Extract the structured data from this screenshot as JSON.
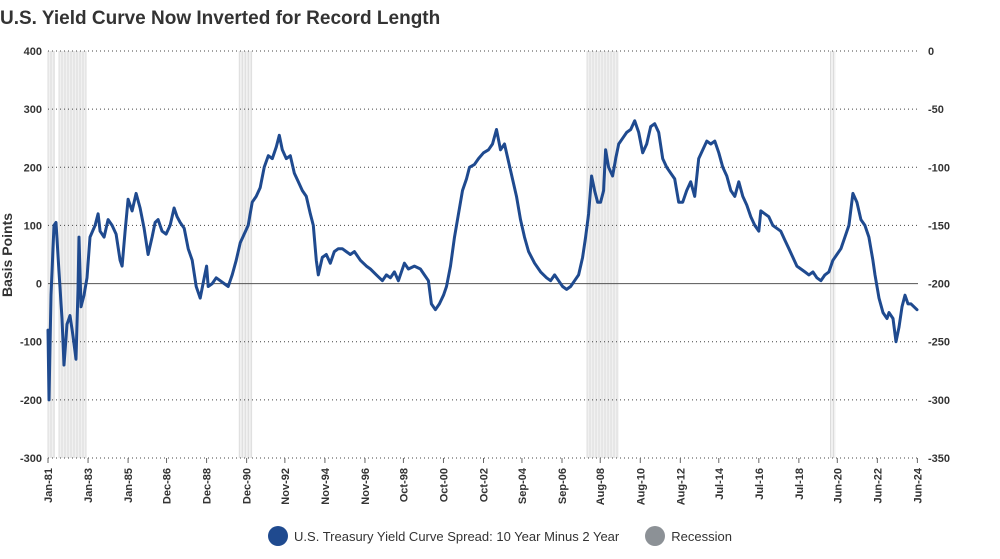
{
  "chart_data": {
    "type": "line",
    "title": "U.S. Yield Curve Now Inverted for Record Length",
    "ylabel": "Basis Points",
    "ylim": [
      -300,
      400
    ],
    "y_ticks": [
      400,
      300,
      200,
      100,
      0,
      -100,
      -200,
      -300
    ],
    "y_ticks_right": [
      "0",
      "-50",
      "-100",
      "-150",
      "-200",
      "-250",
      "-300",
      "-350"
    ],
    "xlim": [
      1981.0,
      2024.45
    ],
    "x_tick_labels": [
      "Jan-81",
      "Jan-83",
      "Jan-85",
      "Dec-86",
      "Dec-88",
      "Dec-90",
      "Nov-92",
      "Nov-94",
      "Nov-96",
      "Oct-98",
      "Oct-00",
      "Oct-02",
      "Sep-04",
      "Sep-06",
      "Aug-08",
      "Aug-10",
      "Aug-12",
      "Jul-14",
      "Jul-16",
      "Jul-18",
      "Jun-20",
      "Jun-22",
      "Jun-24"
    ],
    "x_tick_years": [
      1981.0,
      1983.0,
      1985.0,
      1986.92,
      1988.92,
      1990.92,
      1992.83,
      1994.83,
      1996.83,
      1998.75,
      2000.75,
      2002.75,
      2004.67,
      2006.67,
      2008.58,
      2010.58,
      2012.58,
      2014.5,
      2016.5,
      2018.5,
      2020.42,
      2022.42,
      2024.42
    ],
    "grid": "horizontal dotted",
    "legend_position": "bottom-center",
    "colors": {
      "series": "#1f4a8f",
      "recession": "#8c9196",
      "recession_band": "#dcdcdc"
    },
    "recessions": [
      [
        1981.0,
        1981.35
      ],
      [
        1981.55,
        1982.9
      ],
      [
        1990.55,
        1991.2
      ],
      [
        2007.92,
        2009.5
      ],
      [
        2020.08,
        2020.33
      ]
    ],
    "series": [
      {
        "name": "U.S. Treasury Yield Curve Spread: 10 Year Minus 2 Year",
        "points": [
          [
            1981.0,
            -80
          ],
          [
            1981.05,
            -200
          ],
          [
            1981.15,
            -20
          ],
          [
            1981.3,
            100
          ],
          [
            1981.4,
            105
          ],
          [
            1981.55,
            20
          ],
          [
            1981.7,
            -60
          ],
          [
            1981.8,
            -140
          ],
          [
            1981.95,
            -70
          ],
          [
            1982.1,
            -55
          ],
          [
            1982.25,
            -90
          ],
          [
            1982.4,
            -130
          ],
          [
            1982.5,
            -10
          ],
          [
            1982.55,
            80
          ],
          [
            1982.65,
            -40
          ],
          [
            1982.8,
            -20
          ],
          [
            1982.95,
            10
          ],
          [
            1983.1,
            80
          ],
          [
            1983.35,
            100
          ],
          [
            1983.5,
            120
          ],
          [
            1983.6,
            90
          ],
          [
            1983.8,
            80
          ],
          [
            1984.0,
            110
          ],
          [
            1984.2,
            100
          ],
          [
            1984.4,
            85
          ],
          [
            1984.6,
            40
          ],
          [
            1984.7,
            30
          ],
          [
            1984.85,
            90
          ],
          [
            1985.0,
            145
          ],
          [
            1985.2,
            125
          ],
          [
            1985.4,
            155
          ],
          [
            1985.6,
            130
          ],
          [
            1985.8,
            95
          ],
          [
            1986.0,
            50
          ],
          [
            1986.2,
            80
          ],
          [
            1986.35,
            105
          ],
          [
            1986.5,
            110
          ],
          [
            1986.7,
            90
          ],
          [
            1986.9,
            85
          ],
          [
            1987.1,
            100
          ],
          [
            1987.3,
            130
          ],
          [
            1987.45,
            115
          ],
          [
            1987.6,
            105
          ],
          [
            1987.8,
            95
          ],
          [
            1988.0,
            60
          ],
          [
            1988.2,
            40
          ],
          [
            1988.4,
            -5
          ],
          [
            1988.6,
            -25
          ],
          [
            1988.8,
            10
          ],
          [
            1988.92,
            30
          ],
          [
            1989.0,
            -5
          ],
          [
            1989.2,
            0
          ],
          [
            1989.4,
            10
          ],
          [
            1989.6,
            5
          ],
          [
            1989.8,
            0
          ],
          [
            1990.0,
            -5
          ],
          [
            1990.2,
            15
          ],
          [
            1990.4,
            40
          ],
          [
            1990.6,
            70
          ],
          [
            1990.8,
            85
          ],
          [
            1991.0,
            100
          ],
          [
            1991.2,
            140
          ],
          [
            1991.4,
            150
          ],
          [
            1991.6,
            165
          ],
          [
            1991.8,
            200
          ],
          [
            1992.0,
            220
          ],
          [
            1992.2,
            215
          ],
          [
            1992.4,
            235
          ],
          [
            1992.55,
            255
          ],
          [
            1992.7,
            230
          ],
          [
            1992.9,
            215
          ],
          [
            1993.1,
            220
          ],
          [
            1993.3,
            190
          ],
          [
            1993.5,
            175
          ],
          [
            1993.7,
            160
          ],
          [
            1993.9,
            150
          ],
          [
            1994.1,
            120
          ],
          [
            1994.25,
            100
          ],
          [
            1994.4,
            40
          ],
          [
            1994.5,
            15
          ],
          [
            1994.7,
            45
          ],
          [
            1994.9,
            50
          ],
          [
            1995.1,
            35
          ],
          [
            1995.3,
            55
          ],
          [
            1995.5,
            60
          ],
          [
            1995.7,
            60
          ],
          [
            1995.9,
            55
          ],
          [
            1996.1,
            50
          ],
          [
            1996.3,
            55
          ],
          [
            1996.6,
            40
          ],
          [
            1996.9,
            30
          ],
          [
            1997.1,
            25
          ],
          [
            1997.4,
            15
          ],
          [
            1997.7,
            5
          ],
          [
            1997.9,
            15
          ],
          [
            1998.1,
            10
          ],
          [
            1998.3,
            20
          ],
          [
            1998.5,
            5
          ],
          [
            1998.8,
            35
          ],
          [
            1999.0,
            25
          ],
          [
            1999.3,
            30
          ],
          [
            1999.6,
            25
          ],
          [
            1999.8,
            15
          ],
          [
            2000.0,
            5
          ],
          [
            2000.15,
            -35
          ],
          [
            2000.35,
            -45
          ],
          [
            2000.55,
            -35
          ],
          [
            2000.75,
            -20
          ],
          [
            2000.9,
            -5
          ],
          [
            2001.1,
            30
          ],
          [
            2001.3,
            80
          ],
          [
            2001.5,
            120
          ],
          [
            2001.7,
            160
          ],
          [
            2001.9,
            180
          ],
          [
            2002.05,
            200
          ],
          [
            2002.3,
            205
          ],
          [
            2002.5,
            215
          ],
          [
            2002.75,
            225
          ],
          [
            2003.0,
            230
          ],
          [
            2003.2,
            240
          ],
          [
            2003.4,
            265
          ],
          [
            2003.6,
            230
          ],
          [
            2003.8,
            240
          ],
          [
            2004.0,
            210
          ],
          [
            2004.2,
            180
          ],
          [
            2004.4,
            150
          ],
          [
            2004.6,
            110
          ],
          [
            2004.8,
            80
          ],
          [
            2005.0,
            55
          ],
          [
            2005.3,
            35
          ],
          [
            2005.6,
            20
          ],
          [
            2005.9,
            10
          ],
          [
            2006.1,
            5
          ],
          [
            2006.3,
            15
          ],
          [
            2006.5,
            5
          ],
          [
            2006.7,
            -5
          ],
          [
            2006.9,
            -10
          ],
          [
            2007.1,
            -5
          ],
          [
            2007.3,
            5
          ],
          [
            2007.5,
            15
          ],
          [
            2007.7,
            45
          ],
          [
            2007.85,
            80
          ],
          [
            2008.0,
            120
          ],
          [
            2008.15,
            185
          ],
          [
            2008.3,
            160
          ],
          [
            2008.45,
            140
          ],
          [
            2008.6,
            140
          ],
          [
            2008.75,
            160
          ],
          [
            2008.85,
            230
          ],
          [
            2009.0,
            200
          ],
          [
            2009.2,
            185
          ],
          [
            2009.35,
            215
          ],
          [
            2009.5,
            240
          ],
          [
            2009.7,
            250
          ],
          [
            2009.9,
            260
          ],
          [
            2010.1,
            265
          ],
          [
            2010.3,
            280
          ],
          [
            2010.5,
            260
          ],
          [
            2010.7,
            225
          ],
          [
            2010.9,
            240
          ],
          [
            2011.1,
            270
          ],
          [
            2011.3,
            275
          ],
          [
            2011.5,
            260
          ],
          [
            2011.7,
            215
          ],
          [
            2011.9,
            200
          ],
          [
            2012.1,
            190
          ],
          [
            2012.3,
            180
          ],
          [
            2012.5,
            140
          ],
          [
            2012.7,
            140
          ],
          [
            2012.9,
            160
          ],
          [
            2013.1,
            175
          ],
          [
            2013.3,
            150
          ],
          [
            2013.5,
            215
          ],
          [
            2013.7,
            230
          ],
          [
            2013.9,
            245
          ],
          [
            2014.1,
            240
          ],
          [
            2014.3,
            245
          ],
          [
            2014.5,
            225
          ],
          [
            2014.7,
            200
          ],
          [
            2014.9,
            185
          ],
          [
            2015.1,
            160
          ],
          [
            2015.3,
            150
          ],
          [
            2015.5,
            175
          ],
          [
            2015.7,
            150
          ],
          [
            2015.9,
            135
          ],
          [
            2016.1,
            115
          ],
          [
            2016.3,
            100
          ],
          [
            2016.5,
            90
          ],
          [
            2016.6,
            125
          ],
          [
            2016.8,
            120
          ],
          [
            2017.0,
            115
          ],
          [
            2017.2,
            100
          ],
          [
            2017.4,
            95
          ],
          [
            2017.6,
            90
          ],
          [
            2017.8,
            75
          ],
          [
            2018.0,
            60
          ],
          [
            2018.2,
            45
          ],
          [
            2018.4,
            30
          ],
          [
            2018.6,
            25
          ],
          [
            2018.8,
            20
          ],
          [
            2019.0,
            15
          ],
          [
            2019.2,
            20
          ],
          [
            2019.4,
            10
          ],
          [
            2019.6,
            5
          ],
          [
            2019.8,
            15
          ],
          [
            2020.0,
            20
          ],
          [
            2020.2,
            40
          ],
          [
            2020.4,
            50
          ],
          [
            2020.6,
            60
          ],
          [
            2020.8,
            80
          ],
          [
            2021.0,
            100
          ],
          [
            2021.2,
            155
          ],
          [
            2021.4,
            140
          ],
          [
            2021.6,
            110
          ],
          [
            2021.8,
            100
          ],
          [
            2022.0,
            80
          ],
          [
            2022.2,
            40
          ],
          [
            2022.3,
            15
          ],
          [
            2022.4,
            -5
          ],
          [
            2022.5,
            -25
          ],
          [
            2022.7,
            -50
          ],
          [
            2022.9,
            -60
          ],
          [
            2023.0,
            -50
          ],
          [
            2023.2,
            -60
          ],
          [
            2023.35,
            -100
          ],
          [
            2023.5,
            -75
          ],
          [
            2023.65,
            -40
          ],
          [
            2023.8,
            -20
          ],
          [
            2023.95,
            -35
          ],
          [
            2024.1,
            -35
          ],
          [
            2024.25,
            -40
          ],
          [
            2024.4,
            -45
          ]
        ]
      }
    ]
  },
  "legend": {
    "series_label": "U.S. Treasury Yield Curve Spread: 10 Year Minus 2 Year",
    "recession_label": "Recession"
  }
}
